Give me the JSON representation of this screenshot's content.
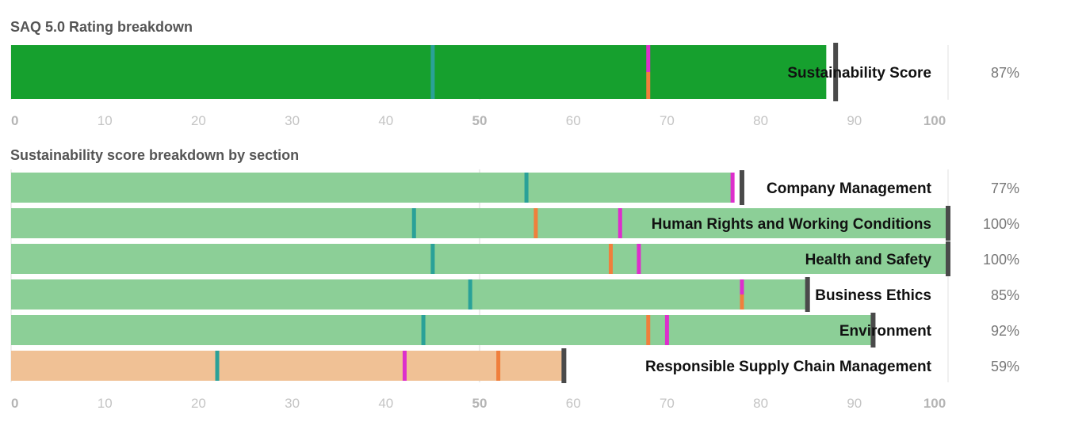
{
  "chart_data": [
    {
      "type": "bar",
      "title": "SAQ 5.0 Rating breakdown",
      "xlim": [
        0,
        100
      ],
      "ticks": [
        "0",
        "10",
        "20",
        "30",
        "40",
        "50",
        "60",
        "70",
        "80",
        "90",
        "100"
      ],
      "rows": [
        {
          "label": "Sustainability Score",
          "value": 87,
          "display": "87%",
          "end_marker": 88,
          "color": "#16a02e",
          "markers": [
            {
              "color": "#2aa198",
              "value": 45
            },
            {
              "color": "#dd2fcc",
              "value": 68,
              "half": "top"
            },
            {
              "color": "#f07f3c",
              "value": 68,
              "half": "bottom"
            }
          ]
        }
      ]
    },
    {
      "type": "bar",
      "title": "Sustainability score breakdown by section",
      "xlim": [
        0,
        100
      ],
      "ticks": [
        "0",
        "10",
        "20",
        "30",
        "40",
        "50",
        "60",
        "70",
        "80",
        "90",
        "100"
      ],
      "rows": [
        {
          "label": "Company Management",
          "value": 77,
          "display": "77%",
          "end_marker": 78,
          "color": "#8ccf97",
          "markers": [
            {
              "color": "#2aa198",
              "value": 55
            },
            {
              "color": "#dd2fcc",
              "value": 77
            },
            {
              "color": "#f07f3c",
              "value": 78,
              "half": "bottom"
            }
          ]
        },
        {
          "label": "Human Rights and Working Conditions",
          "value": 100,
          "display": "100%",
          "end_marker": 100,
          "color": "#8ccf97",
          "markers": [
            {
              "color": "#2aa198",
              "value": 43
            },
            {
              "color": "#f07f3c",
              "value": 56
            },
            {
              "color": "#dd2fcc",
              "value": 65
            }
          ]
        },
        {
          "label": "Health and Safety",
          "value": 100,
          "display": "100%",
          "end_marker": 100,
          "color": "#8ccf97",
          "markers": [
            {
              "color": "#2aa198",
              "value": 45
            },
            {
              "color": "#f07f3c",
              "value": 64
            },
            {
              "color": "#dd2fcc",
              "value": 67
            }
          ]
        },
        {
          "label": "Business Ethics",
          "value": 85,
          "display": "85%",
          "end_marker": 85,
          "color": "#8ccf97",
          "markers": [
            {
              "color": "#2aa198",
              "value": 49
            },
            {
              "color": "#dd2fcc",
              "value": 78,
              "half": "top"
            },
            {
              "color": "#f07f3c",
              "value": 78,
              "half": "bottom"
            }
          ]
        },
        {
          "label": "Environment",
          "value": 92,
          "display": "92%",
          "end_marker": 92,
          "color": "#8ccf97",
          "markers": [
            {
              "color": "#2aa198",
              "value": 44
            },
            {
              "color": "#f07f3c",
              "value": 68
            },
            {
              "color": "#dd2fcc",
              "value": 70
            }
          ]
        },
        {
          "label": "Responsible Supply Chain Management",
          "value": 59,
          "display": "59%",
          "end_marker": 59,
          "color": "#f0c195",
          "markers": [
            {
              "color": "#2aa198",
              "value": 22
            },
            {
              "color": "#dd2fcc",
              "value": 42
            },
            {
              "color": "#f07f3c",
              "value": 52
            }
          ]
        }
      ]
    }
  ]
}
